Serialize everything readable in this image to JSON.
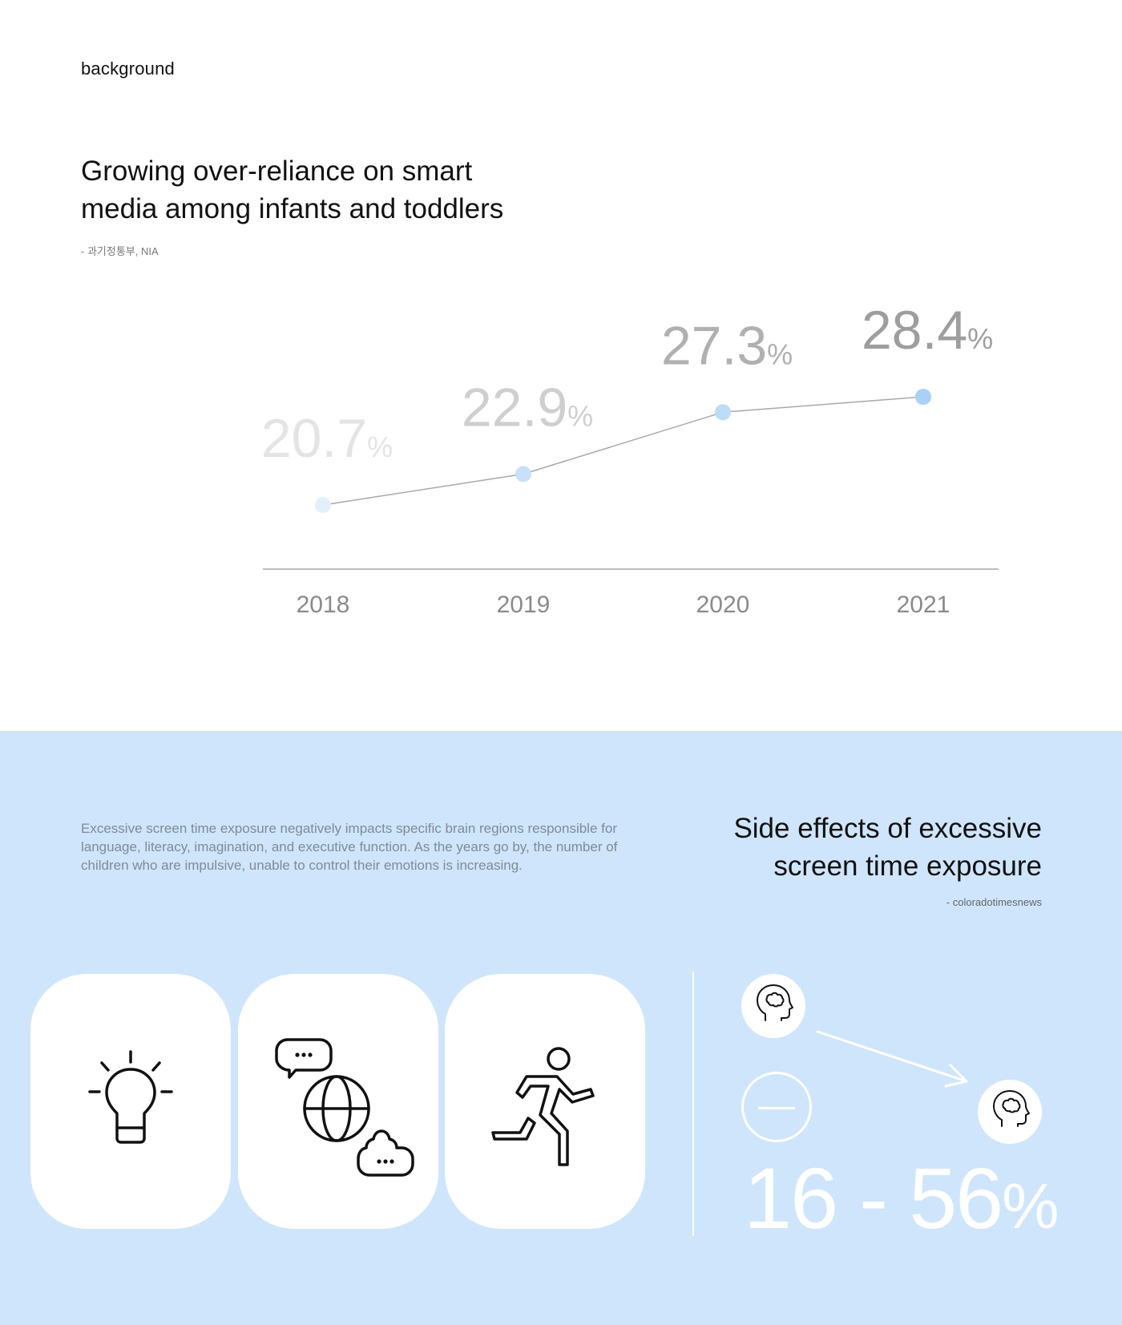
{
  "section_label": "background",
  "headline": {
    "line1": "Growing over-reliance on smart",
    "line2": "media among infants and toddlers"
  },
  "source_top": "- 과기정통부, NIA",
  "chart_data": {
    "type": "line",
    "categories": [
      "2018",
      "2019",
      "2020",
      "2021"
    ],
    "values": [
      20.7,
      22.9,
      27.3,
      28.4
    ],
    "value_labels": [
      "20.7",
      "22.9",
      "27.3",
      "28.4"
    ],
    "unit": "%",
    "point_colors": [
      "#e3f0fc",
      "#c8e1f8",
      "#bcdcf9",
      "#a9d1f7"
    ],
    "label_colors": [
      "#e4e4e4",
      "#cfcfcf",
      "#b0b0b0",
      "#9e9e9e"
    ],
    "line_color": "#a8a8a8",
    "grid": false
  },
  "side_effects": {
    "description": "Excessive screen time exposure negatively impacts specific brain regions responsible for language, literacy, imagination, and executive function. As the years go by, the number of children who are impulsive, unable to control their emotions is increasing.",
    "title_line1": "Side effects of excessive",
    "title_line2": "screen time exposure",
    "source": "- coloradotimesnews",
    "stat_value": "16 - 56",
    "stat_unit": "%",
    "icons": [
      "lightbulb-icon",
      "globe-chat-icon",
      "running-person-icon",
      "brain-head-icon",
      "minus-icon",
      "arrow-icon"
    ],
    "accent_color": "#cfe5fb"
  }
}
